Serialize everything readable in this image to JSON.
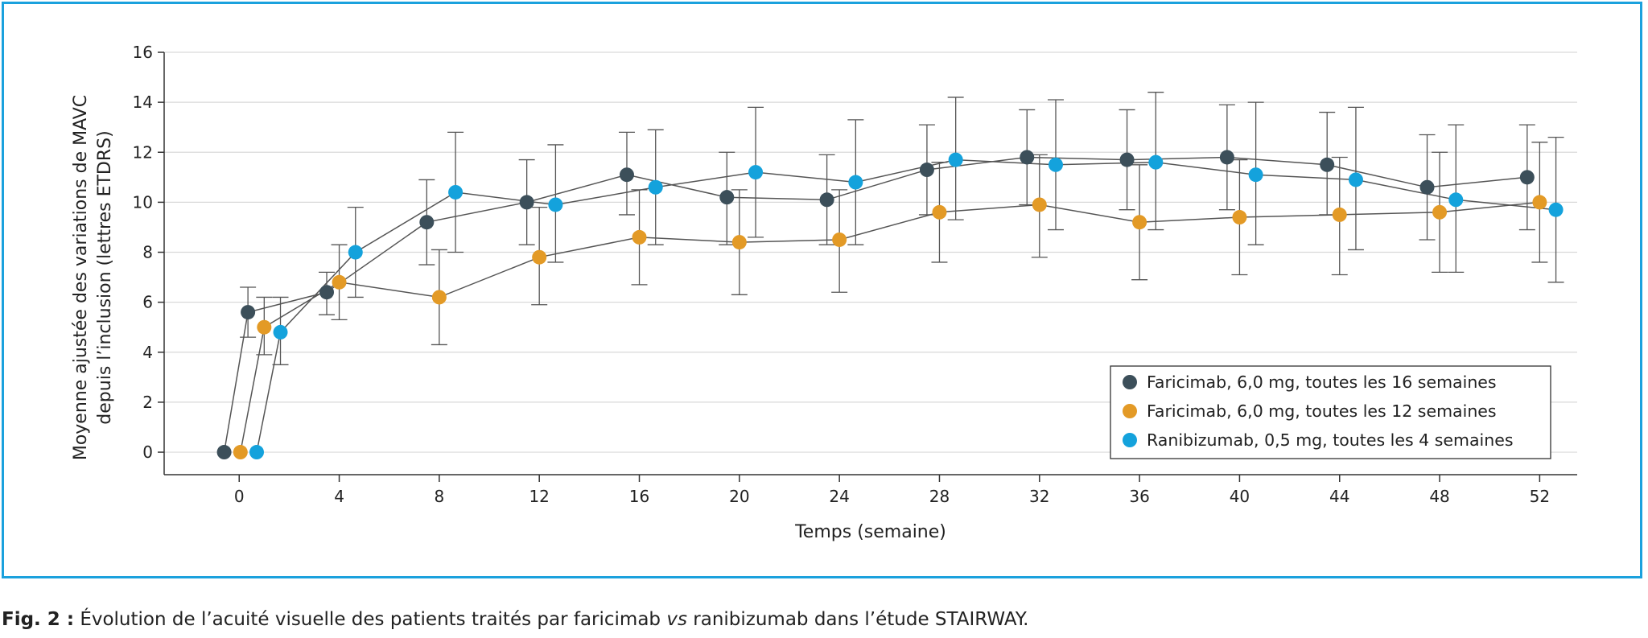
{
  "caption": {
    "prefix": "Fig. 2 :",
    "text_before": " Évolution de l’acuité visuelle des patients traités par faricimab ",
    "italic": "vs",
    "text_after": " ranibizumab dans l’étude STAIRWAY."
  },
  "colors": {
    "frame": "#1ba1dd",
    "grid": "#d9d9d9",
    "axis": "#333333",
    "line": "#555555"
  },
  "chart_data": {
    "type": "line",
    "xlabel": "Temps (semaine)",
    "ylabel_line1": "Moyenne ajustée des variations de MAVC",
    "ylabel_line2": "depuis l’inclusion (lettres ETDRS)",
    "xlim": [
      -3,
      53.5
    ],
    "ylim": [
      -0.9,
      16
    ],
    "xticks": [
      0,
      4,
      8,
      12,
      16,
      20,
      24,
      28,
      32,
      36,
      40,
      44,
      48,
      52
    ],
    "yticks": [
      0,
      2,
      4,
      6,
      8,
      10,
      12,
      14,
      16
    ],
    "grid": true,
    "legend_position": "bottom-right",
    "series": [
      {
        "name": "Faricimab, 6,0 mg, toutes les 16 semaines",
        "color": "#3c4f5a",
        "points": [
          {
            "x": -0.6,
            "y": 0,
            "lo": 0,
            "hi": 0
          },
          {
            "x": 0.35,
            "y": 5.6,
            "lo": 4.6,
            "hi": 6.6
          },
          {
            "x": 3.5,
            "y": 6.4,
            "lo": 5.5,
            "hi": 7.2
          },
          {
            "x": 7.5,
            "y": 9.2,
            "lo": 7.5,
            "hi": 10.9
          },
          {
            "x": 11.5,
            "y": 10.0,
            "lo": 8.3,
            "hi": 11.7
          },
          {
            "x": 15.5,
            "y": 11.1,
            "lo": 9.5,
            "hi": 12.8
          },
          {
            "x": 19.5,
            "y": 10.2,
            "lo": 8.3,
            "hi": 12.0
          },
          {
            "x": 23.5,
            "y": 10.1,
            "lo": 8.3,
            "hi": 11.9
          },
          {
            "x": 27.5,
            "y": 11.3,
            "lo": 9.5,
            "hi": 13.1
          },
          {
            "x": 31.5,
            "y": 11.8,
            "lo": 9.9,
            "hi": 13.7
          },
          {
            "x": 35.5,
            "y": 11.7,
            "lo": 9.7,
            "hi": 13.7
          },
          {
            "x": 39.5,
            "y": 11.8,
            "lo": 9.7,
            "hi": 13.9
          },
          {
            "x": 43.5,
            "y": 11.5,
            "lo": 9.5,
            "hi": 13.6
          },
          {
            "x": 47.5,
            "y": 10.6,
            "lo": 8.5,
            "hi": 12.7
          },
          {
            "x": 51.5,
            "y": 11.0,
            "lo": 8.9,
            "hi": 13.1
          }
        ]
      },
      {
        "name": "Faricimab, 6,0 mg, toutes les 12 semaines",
        "color": "#e39a26",
        "points": [
          {
            "x": 0.05,
            "y": 0,
            "lo": 0,
            "hi": 0
          },
          {
            "x": 1.0,
            "y": 5.0,
            "lo": 3.9,
            "hi": 6.2
          },
          {
            "x": 4.0,
            "y": 6.8,
            "lo": 5.3,
            "hi": 8.3
          },
          {
            "x": 8.0,
            "y": 6.2,
            "lo": 4.3,
            "hi": 8.1
          },
          {
            "x": 12.0,
            "y": 7.8,
            "lo": 5.9,
            "hi": 9.8
          },
          {
            "x": 16.0,
            "y": 8.6,
            "lo": 6.7,
            "hi": 10.5
          },
          {
            "x": 20.0,
            "y": 8.4,
            "lo": 6.3,
            "hi": 10.5
          },
          {
            "x": 24.0,
            "y": 8.5,
            "lo": 6.4,
            "hi": 10.5
          },
          {
            "x": 28.0,
            "y": 9.6,
            "lo": 7.6,
            "hi": 11.6
          },
          {
            "x": 32.0,
            "y": 9.9,
            "lo": 7.8,
            "hi": 11.9
          },
          {
            "x": 36.0,
            "y": 9.2,
            "lo": 6.9,
            "hi": 11.5
          },
          {
            "x": 40.0,
            "y": 9.4,
            "lo": 7.1,
            "hi": 11.7
          },
          {
            "x": 44.0,
            "y": 9.5,
            "lo": 7.1,
            "hi": 11.8
          },
          {
            "x": 48.0,
            "y": 9.6,
            "lo": 7.2,
            "hi": 12.0
          },
          {
            "x": 52.0,
            "y": 10.0,
            "lo": 7.6,
            "hi": 12.4
          }
        ]
      },
      {
        "name": "Ranibizumab, 0,5 mg, toutes les 4 semaines",
        "color": "#14a2dc",
        "points": [
          {
            "x": 0.7,
            "y": 0,
            "lo": 0,
            "hi": 0
          },
          {
            "x": 1.65,
            "y": 4.8,
            "lo": 3.5,
            "hi": 6.2
          },
          {
            "x": 4.65,
            "y": 8.0,
            "lo": 6.2,
            "hi": 9.8
          },
          {
            "x": 8.65,
            "y": 10.4,
            "lo": 8.0,
            "hi": 12.8
          },
          {
            "x": 12.65,
            "y": 9.9,
            "lo": 7.6,
            "hi": 12.3
          },
          {
            "x": 16.65,
            "y": 10.6,
            "lo": 8.3,
            "hi": 12.9
          },
          {
            "x": 20.65,
            "y": 11.2,
            "lo": 8.6,
            "hi": 13.8
          },
          {
            "x": 24.65,
            "y": 10.8,
            "lo": 8.3,
            "hi": 13.3
          },
          {
            "x": 28.65,
            "y": 11.7,
            "lo": 9.3,
            "hi": 14.2
          },
          {
            "x": 32.65,
            "y": 11.5,
            "lo": 8.9,
            "hi": 14.1
          },
          {
            "x": 36.65,
            "y": 11.6,
            "lo": 8.9,
            "hi": 14.4
          },
          {
            "x": 40.65,
            "y": 11.1,
            "lo": 8.3,
            "hi": 14.0
          },
          {
            "x": 44.65,
            "y": 10.9,
            "lo": 8.1,
            "hi": 13.8
          },
          {
            "x": 48.65,
            "y": 10.1,
            "lo": 7.2,
            "hi": 13.1
          },
          {
            "x": 52.65,
            "y": 9.7,
            "lo": 6.8,
            "hi": 12.6
          }
        ]
      }
    ]
  }
}
